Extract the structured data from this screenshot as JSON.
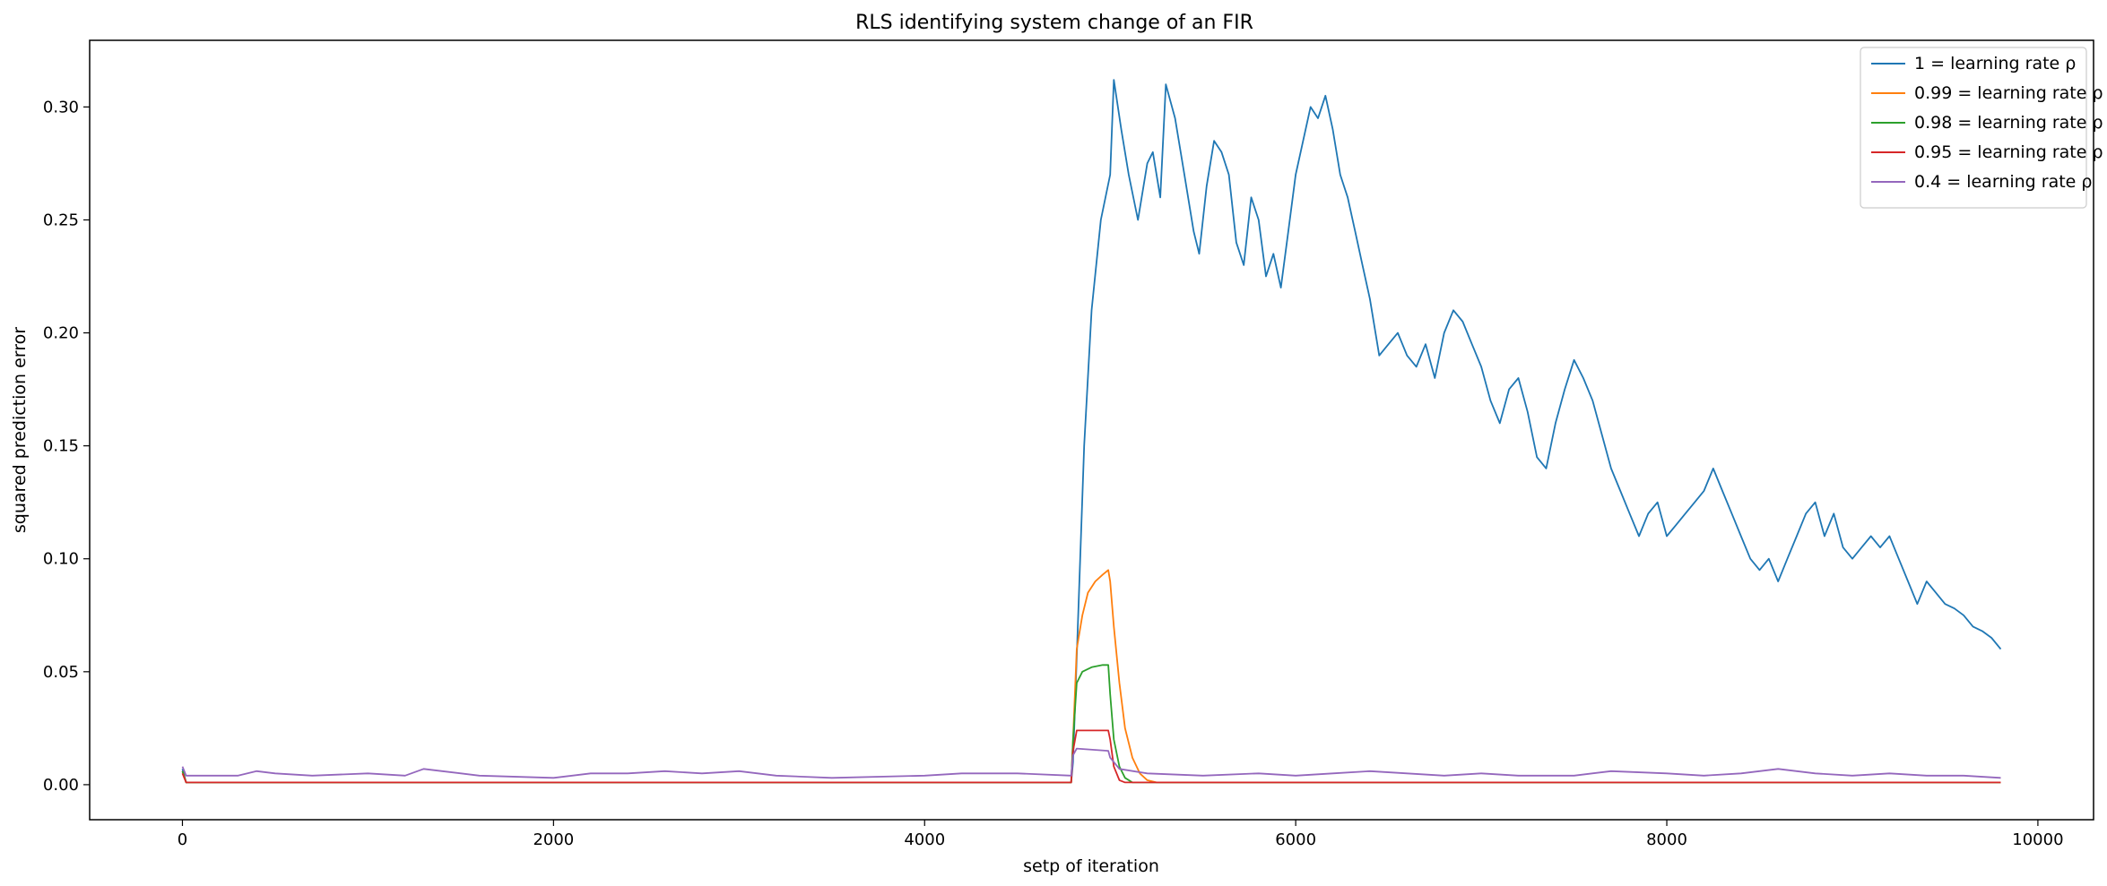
{
  "chart_data": {
    "type": "line",
    "title": "RLS identifying system change of an FIR",
    "xlabel": "setp of iteration",
    "ylabel": "squared prediction error",
    "xlim": [
      -500,
      10300
    ],
    "ylim": [
      -0.0155,
      0.3295
    ],
    "grid": false,
    "legend_position": "top-right",
    "xticks": [
      0,
      2000,
      4000,
      6000,
      8000,
      10000
    ],
    "xtick_labels": [
      "0",
      "2000",
      "4000",
      "6000",
      "8000",
      "10000"
    ],
    "yticks": [
      0.0,
      0.05,
      0.1,
      0.15,
      0.2,
      0.25,
      0.3
    ],
    "ytick_labels": [
      "0.00",
      "0.05",
      "0.10",
      "0.15",
      "0.20",
      "0.25",
      "0.30"
    ],
    "series": [
      {
        "name": "1 = learning rate ρ",
        "color": "#1f77b4",
        "x": [
          0,
          20,
          4790,
          4800,
          4830,
          4860,
          4900,
          4950,
          5000,
          5020,
          5060,
          5100,
          5150,
          5200,
          5230,
          5270,
          5300,
          5350,
          5400,
          5450,
          5480,
          5520,
          5560,
          5600,
          5640,
          5680,
          5720,
          5760,
          5800,
          5840,
          5880,
          5920,
          5960,
          6000,
          6040,
          6080,
          6120,
          6160,
          6200,
          6240,
          6280,
          6320,
          6360,
          6400,
          6450,
          6500,
          6550,
          6600,
          6650,
          6700,
          6750,
          6800,
          6850,
          6900,
          6950,
          7000,
          7050,
          7100,
          7150,
          7200,
          7250,
          7300,
          7350,
          7400,
          7450,
          7500,
          7550,
          7600,
          7650,
          7700,
          7750,
          7800,
          7850,
          7900,
          7950,
          8000,
          8050,
          8100,
          8150,
          8200,
          8250,
          8300,
          8350,
          8400,
          8450,
          8500,
          8550,
          8600,
          8650,
          8700,
          8750,
          8800,
          8850,
          8900,
          8950,
          9000,
          9050,
          9100,
          9150,
          9200,
          9250,
          9300,
          9350,
          9400,
          9450,
          9500,
          9550,
          9600,
          9650,
          9700,
          9750,
          9800
        ],
        "values": [
          0.007,
          0.001,
          0.001,
          0.01,
          0.08,
          0.15,
          0.21,
          0.25,
          0.27,
          0.312,
          0.29,
          0.27,
          0.25,
          0.275,
          0.28,
          0.26,
          0.31,
          0.295,
          0.27,
          0.245,
          0.235,
          0.265,
          0.285,
          0.28,
          0.27,
          0.24,
          0.23,
          0.26,
          0.25,
          0.225,
          0.235,
          0.22,
          0.245,
          0.27,
          0.285,
          0.3,
          0.295,
          0.305,
          0.29,
          0.27,
          0.26,
          0.245,
          0.23,
          0.215,
          0.19,
          0.195,
          0.2,
          0.19,
          0.185,
          0.195,
          0.18,
          0.2,
          0.21,
          0.205,
          0.195,
          0.185,
          0.17,
          0.16,
          0.175,
          0.18,
          0.165,
          0.145,
          0.14,
          0.16,
          0.175,
          0.188,
          0.18,
          0.17,
          0.155,
          0.14,
          0.13,
          0.12,
          0.11,
          0.12,
          0.125,
          0.11,
          0.115,
          0.12,
          0.125,
          0.13,
          0.14,
          0.13,
          0.12,
          0.11,
          0.1,
          0.095,
          0.1,
          0.09,
          0.1,
          0.11,
          0.12,
          0.125,
          0.11,
          0.12,
          0.105,
          0.1,
          0.105,
          0.11,
          0.105,
          0.11,
          0.1,
          0.09,
          0.08,
          0.09,
          0.085,
          0.08,
          0.078,
          0.075,
          0.07,
          0.068,
          0.065,
          0.06
        ]
      },
      {
        "name": "0.99 = learning rate ρ",
        "color": "#ff7f0e",
        "x": [
          0,
          20,
          4790,
          4800,
          4820,
          4850,
          4880,
          4920,
          4960,
          4990,
          5000,
          5020,
          5050,
          5080,
          5120,
          5160,
          5200,
          5250,
          5300,
          9800
        ],
        "values": [
          0.006,
          0.001,
          0.001,
          0.02,
          0.06,
          0.075,
          0.085,
          0.09,
          0.093,
          0.095,
          0.09,
          0.07,
          0.045,
          0.025,
          0.012,
          0.005,
          0.002,
          0.001,
          0.001,
          0.001
        ]
      },
      {
        "name": "0.98 = learning rate ρ",
        "color": "#2ca02c",
        "x": [
          0,
          20,
          4790,
          4800,
          4820,
          4850,
          4900,
          4960,
          4990,
          5000,
          5020,
          5050,
          5080,
          5120,
          5160,
          9800
        ],
        "values": [
          0.006,
          0.001,
          0.001,
          0.02,
          0.045,
          0.05,
          0.052,
          0.053,
          0.053,
          0.04,
          0.02,
          0.008,
          0.003,
          0.001,
          0.001,
          0.001
        ]
      },
      {
        "name": "0.95 = learning rate ρ",
        "color": "#d62728",
        "x": [
          0,
          20,
          4790,
          4800,
          4820,
          4990,
          5000,
          5020,
          5050,
          5080,
          9800
        ],
        "values": [
          0.005,
          0.001,
          0.001,
          0.015,
          0.024,
          0.024,
          0.02,
          0.008,
          0.002,
          0.001,
          0.001
        ]
      },
      {
        "name": "0.4 = learning rate ρ",
        "color": "#9467bd",
        "x": [
          0,
          20,
          300,
          400,
          500,
          700,
          1000,
          1200,
          1300,
          1400,
          1600,
          2000,
          2200,
          2400,
          2600,
          2800,
          3000,
          3200,
          3500,
          4000,
          4200,
          4500,
          4790,
          4800,
          4820,
          4990,
          5000,
          5050,
          5200,
          5500,
          5800,
          6000,
          6200,
          6400,
          6600,
          6800,
          7000,
          7200,
          7500,
          7700,
          8000,
          8200,
          8400,
          8600,
          8800,
          9000,
          9200,
          9400,
          9600,
          9800
        ],
        "values": [
          0.008,
          0.004,
          0.004,
          0.006,
          0.005,
          0.004,
          0.005,
          0.004,
          0.007,
          0.006,
          0.004,
          0.003,
          0.005,
          0.005,
          0.006,
          0.005,
          0.006,
          0.004,
          0.003,
          0.004,
          0.005,
          0.005,
          0.004,
          0.013,
          0.016,
          0.015,
          0.012,
          0.007,
          0.005,
          0.004,
          0.005,
          0.004,
          0.005,
          0.006,
          0.005,
          0.004,
          0.005,
          0.004,
          0.004,
          0.006,
          0.005,
          0.004,
          0.005,
          0.007,
          0.005,
          0.004,
          0.005,
          0.004,
          0.004,
          0.003
        ]
      }
    ]
  }
}
